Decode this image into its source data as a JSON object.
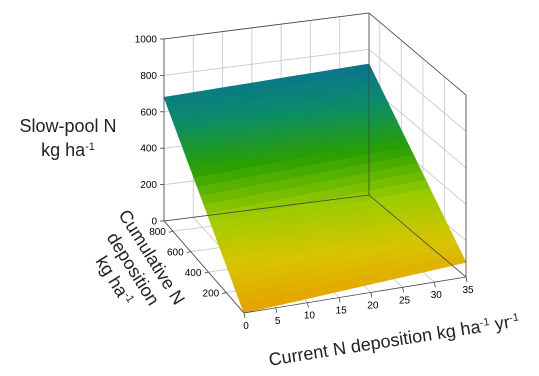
{
  "chart_data": {
    "type": "surface",
    "zlabel": "Slow-pool N\nkg ha-1",
    "xlabel": "Current N deposition kg ha-1 yr-1",
    "ylabel": "Cumulative N deposition kg ha-1",
    "x_ticks": [
      0,
      5,
      10,
      15,
      20,
      25,
      30,
      35
    ],
    "y_ticks": [
      200,
      400,
      600,
      800
    ],
    "z_ticks": [
      0,
      200,
      400,
      600,
      800,
      1000
    ],
    "xlim": [
      0,
      35
    ],
    "ylim": [
      0,
      900
    ],
    "zlim": [
      0,
      1000
    ],
    "grid": true,
    "colormap": [
      "#e8a000",
      "#d8c400",
      "#9ccc00",
      "#2aa000",
      "#0a8c6c",
      "#0e6e96"
    ],
    "surface": {
      "x": [
        0,
        35
      ],
      "y": [
        0,
        900
      ],
      "z": [
        [
          0,
          80
        ],
        [
          680,
          720
        ]
      ],
      "note_values": "z at (x,y) corners: [y=0][x=0,35], [y=900][x=0,35]"
    }
  }
}
